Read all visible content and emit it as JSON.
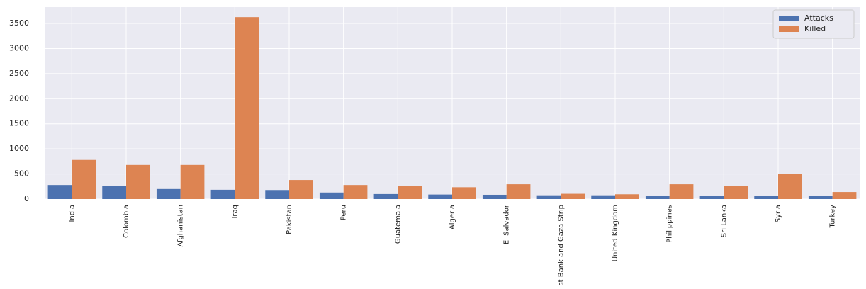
{
  "chart_data": {
    "type": "bar",
    "categories": [
      "India",
      "Colombia",
      "Afghanistan",
      "Iraq",
      "Pakistan",
      "Peru",
      "Guatemala",
      "Algeria",
      "El Salvador",
      "West Bank and Gaza Strip",
      "United Kingdom",
      "Philippines",
      "Sri Lanka",
      "Syria",
      "Turkey"
    ],
    "series": [
      {
        "name": "Attacks",
        "color": "#4c72b0",
        "values": [
          280,
          255,
          200,
          185,
          180,
          130,
          100,
          90,
          85,
          75,
          75,
          70,
          70,
          60,
          60
        ]
      },
      {
        "name": "Killed",
        "color": "#dd8452",
        "values": [
          780,
          680,
          680,
          3625,
          380,
          280,
          265,
          235,
          295,
          105,
          95,
          295,
          265,
          495,
          140
        ]
      }
    ],
    "ylim": [
      0,
      3825
    ],
    "yticks": [
      0,
      500,
      1000,
      1500,
      2000,
      2500,
      3000,
      3500
    ],
    "grid": true,
    "legend": "upper-right"
  }
}
